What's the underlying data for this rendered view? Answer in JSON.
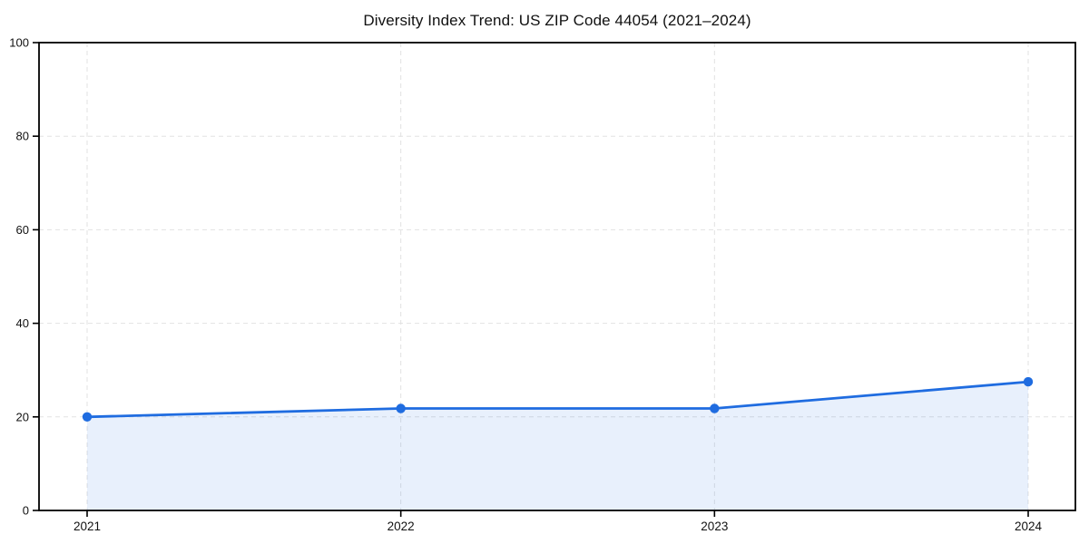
{
  "title": "Diversity Index Trend: US ZIP Code 44054 (2021–2024)",
  "chart_data": {
    "type": "area",
    "categories": [
      "2021",
      "2022",
      "2023",
      "2024"
    ],
    "values": [
      20.0,
      21.8,
      21.8,
      27.5
    ],
    "series": [
      {
        "name": "Diversity Index",
        "values": [
          20.0,
          21.8,
          21.8,
          27.5
        ]
      }
    ],
    "title": "Diversity Index Trend: US ZIP Code 44054 (2021–2024)",
    "xlabel": "",
    "ylabel": "",
    "ylim": [
      0,
      100
    ],
    "yticks": [
      0,
      20,
      40,
      60,
      80,
      100
    ],
    "grid": "dashed gridlines, horizontal and vertical",
    "legend": "none",
    "marker": "filled circle",
    "colors": {
      "line": "#1f6ce0",
      "marker": "#1f6ce0",
      "fill_rgba": "rgba(31,108,224,0.10)",
      "grid": "#e2e2e2",
      "axis": "#000000",
      "text": "#111111",
      "background": "#ffffff"
    }
  }
}
